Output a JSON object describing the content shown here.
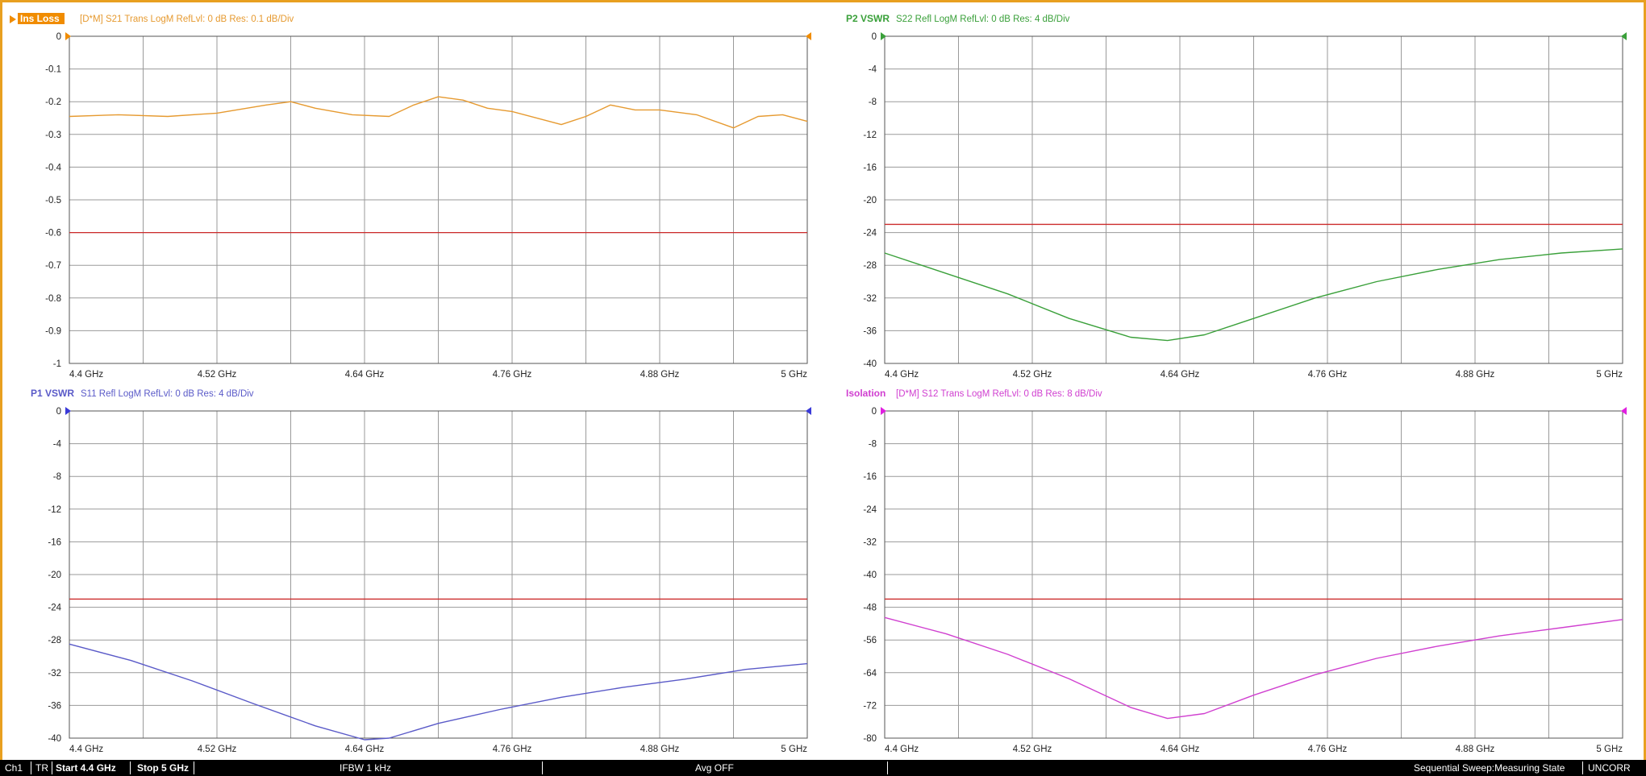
{
  "charts": [
    {
      "id": "ins-loss",
      "label": "Ins Loss",
      "label_style": "box",
      "description": "[D*M] S21 Trans LogM RefLvl: 0  dB Res: 0.1  dB/Div",
      "color": "#e69a30",
      "marker_color": "#f08c00",
      "chart_data": {
        "type": "line",
        "xlim": [
          4.4,
          5.0
        ],
        "ylim": [
          -1,
          0
        ],
        "x_ticks": [
          "4.4 GHz",
          "4.52 GHz",
          "4.64 GHz",
          "4.76 GHz",
          "4.88 GHz",
          "5 GHz"
        ],
        "y_ticks": [
          "0",
          "-0.1",
          "-0.2",
          "-0.3",
          "-0.4",
          "-0.5",
          "-0.6",
          "-0.7",
          "-0.8",
          "-0.9",
          "-1"
        ],
        "limit_line": -0.6,
        "x": [
          4.4,
          4.44,
          4.48,
          4.52,
          4.56,
          4.58,
          4.6,
          4.63,
          4.66,
          4.68,
          4.7,
          4.72,
          4.74,
          4.76,
          4.8,
          4.82,
          4.84,
          4.86,
          4.88,
          4.91,
          4.94,
          4.96,
          4.98,
          5.0
        ],
        "y": [
          -0.245,
          -0.24,
          -0.245,
          -0.235,
          -0.21,
          -0.2,
          -0.22,
          -0.24,
          -0.245,
          -0.21,
          -0.185,
          -0.195,
          -0.22,
          -0.23,
          -0.27,
          -0.245,
          -0.21,
          -0.225,
          -0.225,
          -0.24,
          -0.28,
          -0.245,
          -0.24,
          -0.26
        ]
      }
    },
    {
      "id": "p2-vswr",
      "label": "P2 VSWR",
      "label_style": "text",
      "description": "S22 Refl LogM RefLvl: 0  dB Res: 4  dB/Div",
      "color": "#3aa03a",
      "marker_color": "#3aa03a",
      "chart_data": {
        "type": "line",
        "xlim": [
          4.4,
          5.0
        ],
        "ylim": [
          -40,
          0
        ],
        "x_ticks": [
          "4.4 GHz",
          "4.52 GHz",
          "4.64 GHz",
          "4.76 GHz",
          "4.88 GHz",
          "5 GHz"
        ],
        "y_ticks": [
          "0",
          "-4",
          "-8",
          "-12",
          "-16",
          "-20",
          "-24",
          "-28",
          "-32",
          "-36",
          "-40"
        ],
        "limit_line": -23,
        "x": [
          4.4,
          4.45,
          4.5,
          4.55,
          4.6,
          4.63,
          4.66,
          4.7,
          4.75,
          4.8,
          4.85,
          4.9,
          4.95,
          5.0
        ],
        "y": [
          -26.5,
          -29,
          -31.5,
          -34.5,
          -36.8,
          -37.2,
          -36.5,
          -34.5,
          -32,
          -30,
          -28.5,
          -27.3,
          -26.5,
          -26
        ]
      }
    },
    {
      "id": "p1-vswr",
      "label": "P1 VSWR",
      "label_style": "text",
      "description": "S11 Refl LogM RefLvl: 0  dB Res: 4  dB/Div",
      "color": "#5a5ac8",
      "marker_color": "#3a3ad8",
      "chart_data": {
        "type": "line",
        "xlim": [
          4.4,
          5.0
        ],
        "ylim": [
          -40,
          0
        ],
        "x_ticks": [
          "4.4 GHz",
          "4.52 GHz",
          "4.64 GHz",
          "4.76 GHz",
          "4.88 GHz",
          "5 GHz"
        ],
        "y_ticks": [
          "0",
          "-4",
          "-8",
          "-12",
          "-16",
          "-20",
          "-24",
          "-28",
          "-32",
          "-36",
          "-40"
        ],
        "limit_line": -23,
        "x": [
          4.4,
          4.45,
          4.5,
          4.55,
          4.6,
          4.64,
          4.66,
          4.7,
          4.75,
          4.8,
          4.85,
          4.9,
          4.95,
          5.0
        ],
        "y": [
          -28.5,
          -30.5,
          -33,
          -35.8,
          -38.5,
          -40.2,
          -40,
          -38.2,
          -36.5,
          -35,
          -33.8,
          -32.8,
          -31.6,
          -30.9
        ]
      }
    },
    {
      "id": "isolation",
      "label": "Isolation",
      "label_style": "text",
      "description": "[D*M] S12 Trans LogM RefLvl: 0  dB Res: 8  dB/Div",
      "color": "#d040d0",
      "marker_color": "#e020e0",
      "chart_data": {
        "type": "line",
        "xlim": [
          4.4,
          5.0
        ],
        "ylim": [
          -80,
          0
        ],
        "x_ticks": [
          "4.4 GHz",
          "4.52 GHz",
          "4.64 GHz",
          "4.76 GHz",
          "4.88 GHz",
          "5 GHz"
        ],
        "y_ticks": [
          "0",
          "-8",
          "-16",
          "-24",
          "-32",
          "-40",
          "-48",
          "-56",
          "-64",
          "-72",
          "-80"
        ],
        "limit_line": -46,
        "x": [
          4.4,
          4.45,
          4.5,
          4.55,
          4.6,
          4.63,
          4.66,
          4.7,
          4.75,
          4.8,
          4.85,
          4.9,
          4.95,
          5.0
        ],
        "y": [
          -50.5,
          -54.5,
          -59.5,
          -65.5,
          -72.5,
          -75.2,
          -74,
          -69.5,
          -64.5,
          -60.5,
          -57.5,
          -55,
          -53,
          -51
        ]
      }
    }
  ],
  "status": {
    "channel": "Ch1",
    "mode": "TR",
    "start": "Start 4.4 GHz",
    "stop": "Stop 5 GHz",
    "ifbw": "IFBW 1 kHz",
    "avg": "Avg OFF",
    "sweep": "Sequential Sweep:Measuring State",
    "cal": "UNCORR"
  }
}
